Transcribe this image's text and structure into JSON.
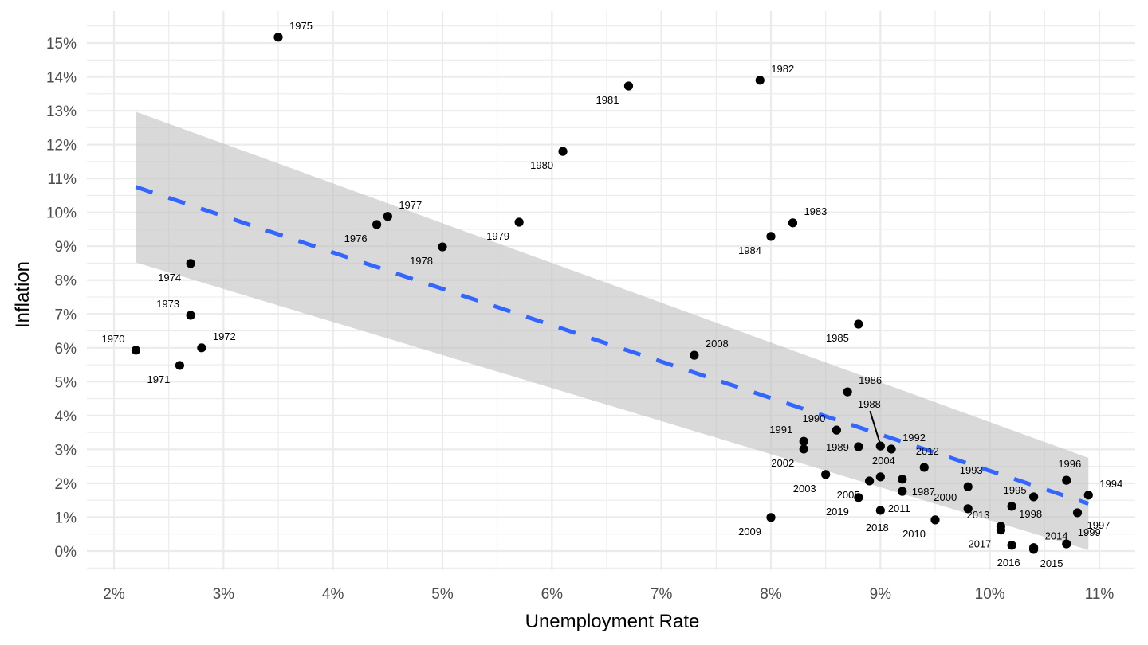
{
  "chart_data": {
    "type": "scatter",
    "title": "",
    "xlabel": "Unemployment Rate",
    "ylabel": "Inflation",
    "xlim": [
      1.8,
      11.3
    ],
    "ylim": [
      -0.55,
      15.75
    ],
    "x_ticks": [
      2,
      3,
      4,
      5,
      6,
      7,
      8,
      9,
      10,
      11
    ],
    "x_tick_labels": [
      "2%",
      "3%",
      "4%",
      "5%",
      "6%",
      "7%",
      "8%",
      "9%",
      "10%",
      "11%"
    ],
    "y_ticks": [
      0,
      1,
      2,
      3,
      4,
      5,
      6,
      7,
      8,
      9,
      10,
      11,
      12,
      13,
      14,
      15
    ],
    "y_tick_labels": [
      "0%",
      "1%",
      "2%",
      "3%",
      "4%",
      "5%",
      "6%",
      "7%",
      "8%",
      "9%",
      "10%",
      "11%",
      "12%",
      "13%",
      "14%",
      "15%"
    ],
    "grid": true,
    "legend": "none",
    "colors": {
      "point": "#000000",
      "trend": "#3366ff",
      "ribbon": "#bfbfbf",
      "grid": "#ebebeb"
    },
    "trend_line": {
      "style": "dashed",
      "x": [
        2.2,
        10.9
      ],
      "y": [
        10.75,
        1.4
      ],
      "ci_upper": [
        12.97,
        2.75
      ],
      "ci_lower": [
        8.52,
        0.03
      ]
    },
    "points": [
      {
        "year": "1970",
        "x": 2.2,
        "y": 5.93,
        "label_pos": "top-left"
      },
      {
        "year": "1971",
        "x": 2.6,
        "y": 5.48,
        "label_pos": "bottom-left"
      },
      {
        "year": "1972",
        "x": 2.8,
        "y": 6.0,
        "label_pos": "top-right"
      },
      {
        "year": "1973",
        "x": 2.7,
        "y": 6.96,
        "label_pos": "top-left"
      },
      {
        "year": "1974",
        "x": 2.7,
        "y": 8.49,
        "label_pos": "bottom-left"
      },
      {
        "year": "1975",
        "x": 3.5,
        "y": 15.17,
        "label_pos": "top-right"
      },
      {
        "year": "1976",
        "x": 4.4,
        "y": 9.64,
        "label_pos": "bottom-left"
      },
      {
        "year": "1977",
        "x": 4.5,
        "y": 9.88,
        "label_pos": "top-right"
      },
      {
        "year": "1978",
        "x": 5.0,
        "y": 8.98,
        "label_pos": "bottom-left"
      },
      {
        "year": "1979",
        "x": 5.7,
        "y": 9.71,
        "label_pos": "bottom-left"
      },
      {
        "year": "1980",
        "x": 6.1,
        "y": 11.8,
        "label_pos": "bottom-left"
      },
      {
        "year": "1981",
        "x": 6.7,
        "y": 13.73,
        "label_pos": "bottom-left"
      },
      {
        "year": "1982",
        "x": 7.9,
        "y": 13.9,
        "label_pos": "top-right"
      },
      {
        "year": "1983",
        "x": 8.2,
        "y": 9.69,
        "label_pos": "top-right"
      },
      {
        "year": "1984",
        "x": 8.0,
        "y": 9.29,
        "label_pos": "bottom-left"
      },
      {
        "year": "1985",
        "x": 8.8,
        "y": 6.7,
        "label_pos": "bottom-left"
      },
      {
        "year": "1986",
        "x": 8.7,
        "y": 4.7,
        "label_pos": "top-right"
      },
      {
        "year": "1987",
        "x": 9.2,
        "y": 2.12,
        "label_pos": "right"
      },
      {
        "year": "1988",
        "x": 9.0,
        "y": 3.1,
        "label_pos": "leader-up"
      },
      {
        "year": "1989",
        "x": 8.8,
        "y": 3.08,
        "label_pos": "left"
      },
      {
        "year": "1990",
        "x": 8.6,
        "y": 3.57,
        "label_pos": "top-left"
      },
      {
        "year": "1991",
        "x": 8.3,
        "y": 3.24,
        "label_pos": "top-left"
      },
      {
        "year": "1992",
        "x": 9.1,
        "y": 3.01,
        "label_pos": "top-right"
      },
      {
        "year": "1993",
        "x": 9.8,
        "y": 1.9,
        "label_pos": "top"
      },
      {
        "year": "1994",
        "x": 10.9,
        "y": 1.65,
        "label_pos": "top-right"
      },
      {
        "year": "1995",
        "x": 10.2,
        "y": 1.32,
        "label_pos": "top"
      },
      {
        "year": "1996",
        "x": 10.7,
        "y": 2.09,
        "label_pos": "top"
      },
      {
        "year": "1997",
        "x": 10.8,
        "y": 1.13,
        "label_pos": "right"
      },
      {
        "year": "1998",
        "x": 10.4,
        "y": 1.6,
        "label_pos": "bottom"
      },
      {
        "year": "1999",
        "x": 10.7,
        "y": 0.21,
        "label_pos": "top-right"
      },
      {
        "year": "2000",
        "x": 9.8,
        "y": 1.25,
        "label_pos": "top-left"
      },
      {
        "year": "2002",
        "x": 8.3,
        "y": 3.01,
        "label_pos": "bottom-left"
      },
      {
        "year": "2003",
        "x": 8.5,
        "y": 2.26,
        "label_pos": "bottom-left"
      },
      {
        "year": "2004",
        "x": 9.0,
        "y": 2.19,
        "label_pos": "top"
      },
      {
        "year": "2005",
        "x": 8.9,
        "y": 2.07,
        "label_pos": "bottom-left"
      },
      {
        "year": "2008",
        "x": 7.3,
        "y": 5.78,
        "label_pos": "top-right"
      },
      {
        "year": "2009",
        "x": 8.0,
        "y": 0.99,
        "label_pos": "bottom-left"
      },
      {
        "year": "2010",
        "x": 9.5,
        "y": 0.92,
        "label_pos": "bottom-left"
      },
      {
        "year": "2011",
        "x": 9.2,
        "y": 1.76,
        "label_pos": "bottom"
      },
      {
        "year": "2012",
        "x": 9.4,
        "y": 2.47,
        "label_pos": "top"
      },
      {
        "year": "2013",
        "x": 10.1,
        "y": 0.73,
        "label_pos": "top-left"
      },
      {
        "year": "2014",
        "x": 10.4,
        "y": 0.1,
        "label_pos": "top-right"
      },
      {
        "year": "2015",
        "x": 10.4,
        "y": 0.05,
        "label_pos": "bottom-right"
      },
      {
        "year": "2016",
        "x": 10.2,
        "y": 0.17,
        "label_pos": "bottom"
      },
      {
        "year": "2017",
        "x": 10.1,
        "y": 0.62,
        "label_pos": "bottom-left"
      },
      {
        "year": "2018",
        "x": 9.0,
        "y": 1.2,
        "label_pos": "bottom"
      },
      {
        "year": "2019",
        "x": 8.8,
        "y": 1.58,
        "label_pos": "bottom-left"
      }
    ]
  }
}
